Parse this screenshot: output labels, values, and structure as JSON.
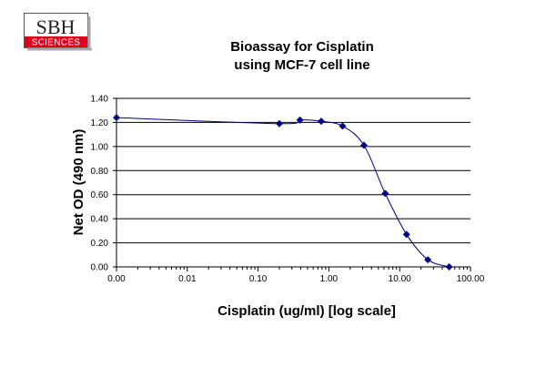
{
  "logo": {
    "top_text": "SBH",
    "bottom_text": "SCIENCES",
    "accent_color": "#e3001b"
  },
  "chart_data": {
    "type": "line",
    "title": [
      "Bioassay for Cisplatin",
      "using MCF-7 cell line"
    ],
    "xlabel": "Cisplatin (ug/ml) [log scale]",
    "ylabel": "Net OD (490 nm)",
    "x_scale": "log",
    "xlim": [
      0.001,
      100
    ],
    "ylim": [
      0,
      1.4
    ],
    "x_ticks": [
      0.001,
      0.01,
      0.1,
      1,
      10,
      100
    ],
    "x_tick_labels": [
      "0.00",
      "0.01",
      "0.10",
      "1.00",
      "10.00",
      "100.00"
    ],
    "y_ticks": [
      0,
      0.2,
      0.4,
      0.6,
      0.8,
      1.0,
      1.2,
      1.4
    ],
    "y_tick_labels": [
      "0.00",
      "0.20",
      "0.40",
      "0.60",
      "0.80",
      "1.00",
      "1.20",
      "1.40"
    ],
    "grid": "horizontal",
    "marker": "diamond",
    "line_style": "smooth",
    "series_color": "#000080",
    "series": [
      {
        "x": [
          0.001,
          0.2,
          0.39,
          0.78,
          1.56,
          3.13,
          6.25,
          12.5,
          25,
          50
        ],
        "y": [
          1.24,
          1.19,
          1.22,
          1.21,
          1.17,
          1.01,
          0.61,
          0.27,
          0.06,
          0.0
        ]
      }
    ]
  }
}
